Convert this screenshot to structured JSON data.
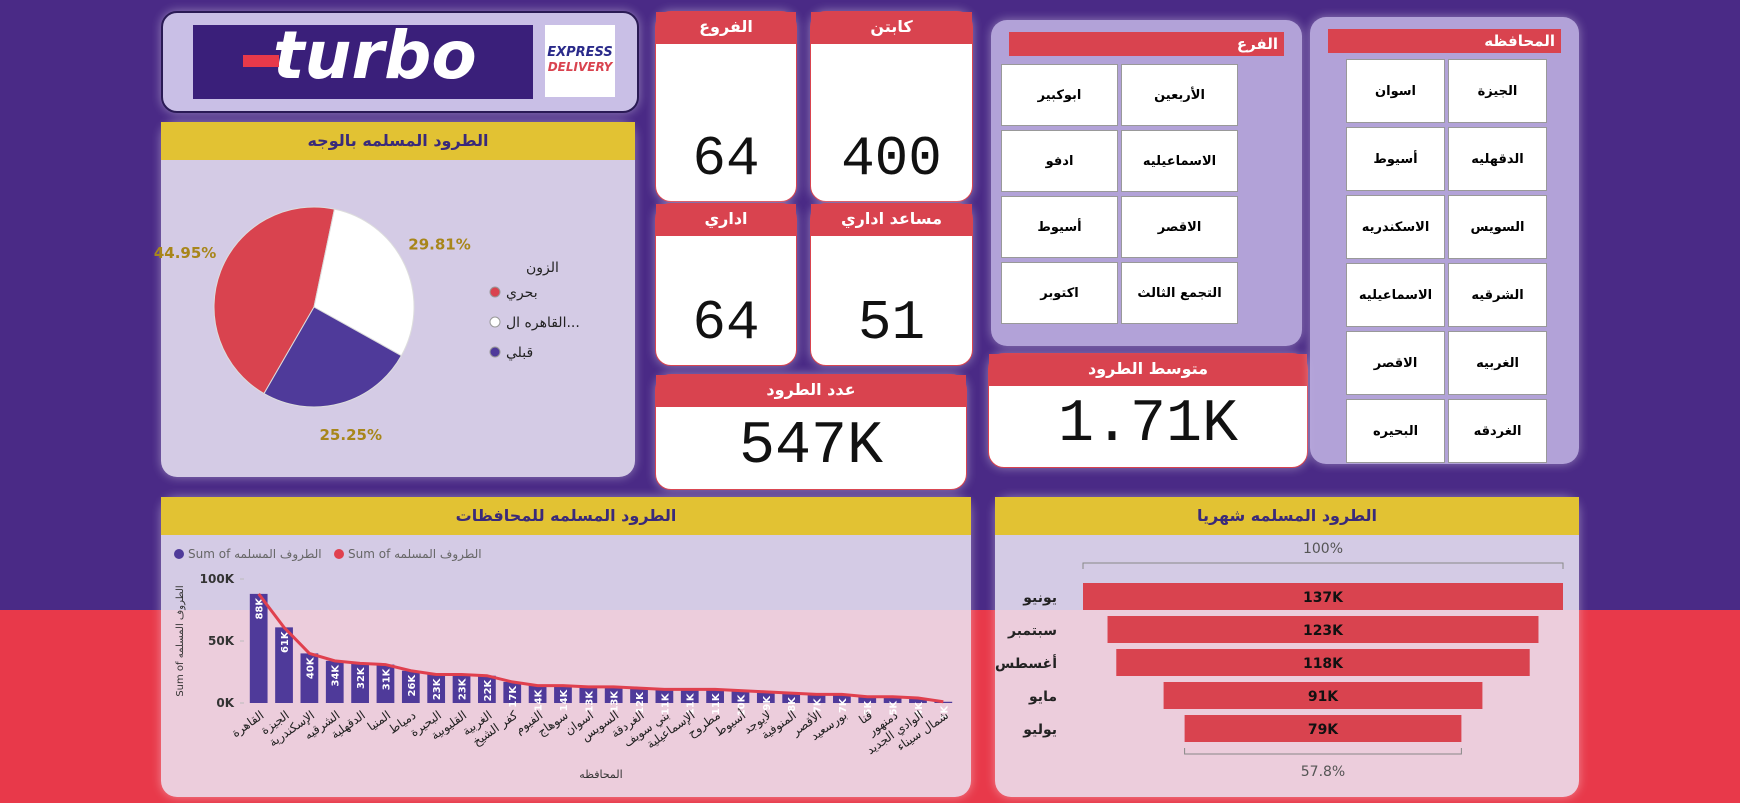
{
  "header": {
    "logo": "turbo",
    "badge_top": "EXPRESS",
    "badge_bottom": "DELIVERY"
  },
  "cards": [
    {
      "title": "الفروع",
      "value": "64"
    },
    {
      "title": "كابتن",
      "value": "400"
    },
    {
      "title": "اداري",
      "value": "64"
    },
    {
      "title": "مساعد اداري",
      "value": "51"
    },
    {
      "title": "عدد الطرود",
      "value": "547K"
    },
    {
      "title": "متوسط الطرود",
      "value": "1.71K"
    }
  ],
  "slicers": [
    {
      "title": "الفرع",
      "items": [
        "الأربعين",
        "ابوكبير",
        "الاسماعيليه",
        "ادفو",
        "الاقصر",
        "أسيوط",
        "التجمع الثالث",
        "اكتوبر"
      ]
    },
    {
      "title": "المحافظه",
      "items": [
        "الجيزة",
        "اسوان",
        "الدقهليه",
        "أسيوط",
        "السويس",
        "الاسكندريه",
        "الشرقيه",
        "الاسماعيليه",
        "الغربيه",
        "الاقصر",
        "الغردقه",
        "البحيره"
      ]
    }
  ],
  "chart_data": [
    {
      "type": "pie",
      "title": "الطرود المسلمه بالوجه",
      "legend_title": "الزون",
      "categories": [
        "بحري",
        "القاهره ال...",
        "قبلي"
      ],
      "values": [
        44.95,
        29.81,
        25.25
      ],
      "value_labels": [
        "44.95%",
        "29.81%",
        "25.25%"
      ],
      "colors": [
        "#d9434f",
        "#ffffff",
        "#4f3a9a"
      ]
    },
    {
      "type": "bar",
      "title": "الطرود المسلمه للمحافظات",
      "x_label": "المحافظه",
      "y_label": "Sum of الطروف المسلمه",
      "categories": [
        "القاهرة",
        "الجيزة",
        "الإسكندرية",
        "الشرقيه",
        "الدقهلية",
        "المنيا",
        "دمياط",
        "البحيرة",
        "القليوبية",
        "الغربية",
        "كفر الشيخ",
        "الفيوم",
        "سوهاج",
        "اسوان",
        "السويس",
        "الغردقة",
        "بني سويف",
        "الإسماعيلية",
        "مطروح",
        "أسيوط",
        "لايوجد",
        "المنوفية",
        "الأقصر",
        "بورسعيد",
        "قنا",
        "دمنهور",
        "الوادي الجديد",
        "شمال سيناء"
      ],
      "series": [
        {
          "name": "Sum of الطروف المسلمه",
          "color": "#4f3a9a",
          "values": [
            88000,
            61000,
            40000,
            34000,
            32000,
            31000,
            26000,
            23000,
            23000,
            22000,
            17000,
            14000,
            14000,
            13000,
            13000,
            12000,
            11000,
            11000,
            11000,
            10000,
            9000,
            8000,
            7000,
            7000,
            5000,
            5000,
            4000,
            1000
          ],
          "value_labels": [
            "88K",
            "61K",
            "40K",
            "34K",
            "32K",
            "31K",
            "26K",
            "23K",
            "23K",
            "22K",
            "17K",
            "14K",
            "14K",
            "13K",
            "13K",
            "12K",
            "11K",
            "11K",
            "11K",
            "10K",
            "9K",
            "8K",
            "7K",
            "7K",
            "5K",
            "5K",
            "4K",
            "1K"
          ]
        },
        {
          "name": "Sum of الطروف المسلمه",
          "color": "#e0404e",
          "values": [
            88000,
            61000,
            40000,
            34000,
            32000,
            31000,
            26000,
            23000,
            23000,
            22000,
            17000,
            14000,
            14000,
            13000,
            13000,
            12000,
            11000,
            11000,
            11000,
            10000,
            9000,
            8000,
            7000,
            7000,
            5000,
            5000,
            4000,
            1000
          ]
        }
      ],
      "ylim": [
        0,
        100000
      ],
      "yticks": [
        {
          "value": 0,
          "label": "0K"
        },
        {
          "value": 50000,
          "label": "50K"
        },
        {
          "value": 100000,
          "label": "100K"
        }
      ]
    },
    {
      "type": "funnel",
      "title": "الطرود المسلمه شهريا",
      "top_label": "100%",
      "bottom_label": "57.8%",
      "categories": [
        "يونيو",
        "سبتمبر",
        "أغسطس",
        "مايو",
        "يوليو"
      ],
      "values": [
        137000,
        123000,
        118000,
        91000,
        79000
      ],
      "value_labels": [
        "137K",
        "123K",
        "118K",
        "91K",
        "79K"
      ],
      "color": "#d9434f"
    }
  ]
}
